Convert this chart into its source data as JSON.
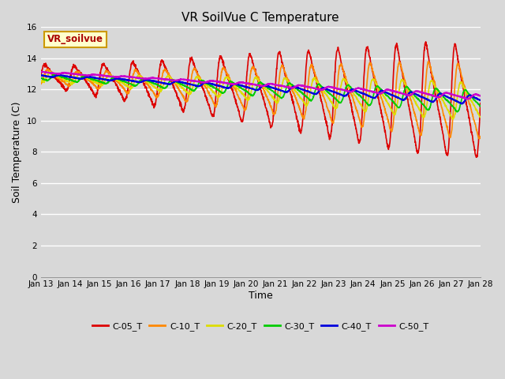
{
  "title": "VR SoilVue C Temperature",
  "xlabel": "Time",
  "ylabel": "Soil Temperature (C)",
  "ylim": [
    0,
    16
  ],
  "yticks": [
    0,
    2,
    4,
    6,
    8,
    10,
    12,
    14,
    16
  ],
  "bg_color": "#d8d8d8",
  "plot_bg_color": "#d8d8d8",
  "annotation_text": "VR_soilvue",
  "annotation_bg": "#ffffcc",
  "annotation_border": "#cc9900",
  "series_colors": {
    "C-05_T": "#dd0000",
    "C-10_T": "#ff8800",
    "C-20_T": "#dddd00",
    "C-30_T": "#00cc00",
    "C-40_T": "#0000dd",
    "C-50_T": "#cc00cc"
  },
  "legend_labels": [
    "C-05_T",
    "C-10_T",
    "C-20_T",
    "C-30_T",
    "C-40_T",
    "C-50_T"
  ],
  "date_labels": [
    "Jan 13",
    "Jan 14",
    "Jan 15",
    "Jan 16",
    "Jan 17",
    "Jan 18",
    "Jan 19",
    "Jan 20",
    "Jan 21",
    "Jan 22",
    "Jan 23",
    "Jan 24",
    "Jan 25",
    "Jan 26",
    "Jan 27",
    "Jan 28"
  ],
  "n_days": 15,
  "samples_per_day": 144
}
